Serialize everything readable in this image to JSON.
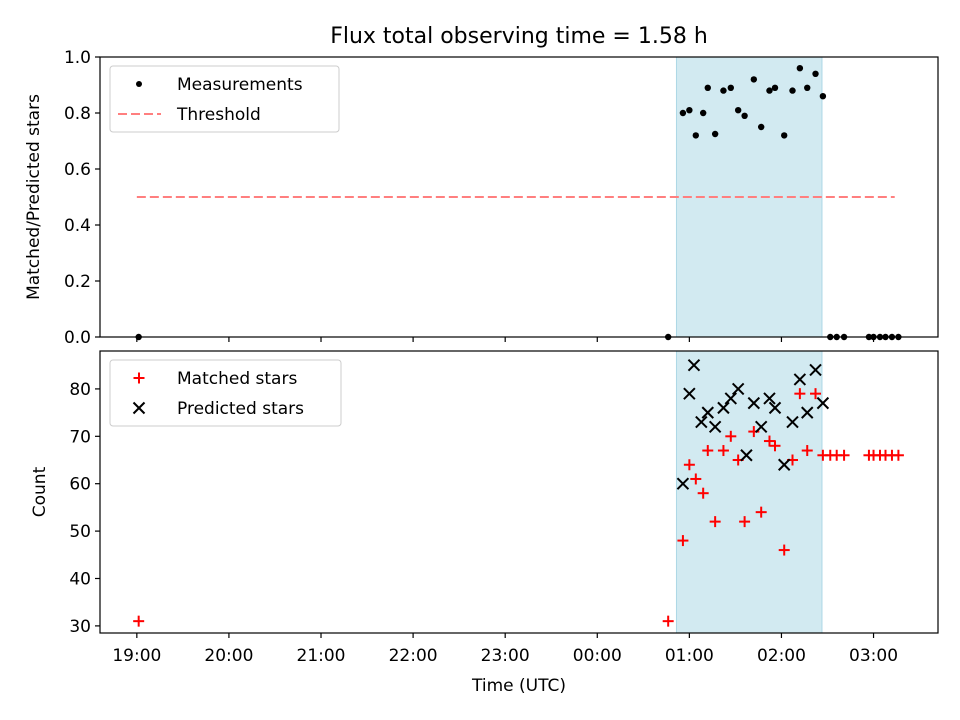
{
  "title": "Flux total observing time = 1.58 h",
  "chart_data": [
    {
      "type": "scatter",
      "ylabel": "Matched/Predicted stars",
      "ylim": [
        0,
        1.0
      ],
      "yticks": [
        "0.0",
        "0.2",
        "0.4",
        "0.6",
        "0.8",
        "1.0"
      ],
      "xlim_hours": [
        18.6,
        27.7
      ],
      "legend": {
        "placement": "top-left",
        "entries": [
          "Measurements",
          "Threshold"
        ]
      },
      "shaded_interval": [
        24.86,
        26.44
      ],
      "colors": {
        "measurements": "#000000",
        "threshold": "#ff7f7f",
        "shade": "#add8e6"
      },
      "threshold": {
        "y": 0.5,
        "x_start": 19.0,
        "x_end": 27.23
      },
      "series": [
        {
          "name": "Measurements",
          "marker": "dot",
          "points": [
            [
              19.02,
              0.0
            ],
            [
              24.77,
              0.0
            ],
            [
              24.93,
              0.8
            ],
            [
              25.0,
              0.81
            ],
            [
              25.07,
              0.72
            ],
            [
              25.15,
              0.8
            ],
            [
              25.2,
              0.89
            ],
            [
              25.28,
              0.725
            ],
            [
              25.37,
              0.88
            ],
            [
              25.45,
              0.89
            ],
            [
              25.53,
              0.81
            ],
            [
              25.6,
              0.79
            ],
            [
              25.7,
              0.92
            ],
            [
              25.78,
              0.75
            ],
            [
              25.87,
              0.88
            ],
            [
              25.93,
              0.89
            ],
            [
              26.03,
              0.72
            ],
            [
              26.12,
              0.88
            ],
            [
              26.2,
              0.96
            ],
            [
              26.28,
              0.89
            ],
            [
              26.37,
              0.94
            ],
            [
              26.45,
              0.86
            ],
            [
              26.53,
              0.0
            ],
            [
              26.6,
              0.0
            ],
            [
              26.68,
              0.0
            ],
            [
              26.95,
              0.0
            ],
            [
              27.0,
              0.0
            ],
            [
              27.07,
              0.0
            ],
            [
              27.13,
              0.0
            ],
            [
              27.2,
              0.0
            ],
            [
              27.27,
              0.0
            ]
          ]
        }
      ]
    },
    {
      "type": "scatter",
      "ylabel": "Count",
      "xlabel": "Time (UTC)",
      "ylim": [
        28.5,
        88
      ],
      "yticks": [
        "30",
        "40",
        "50",
        "60",
        "70",
        "80"
      ],
      "xlim_hours": [
        18.6,
        27.7
      ],
      "xticks": [
        {
          "h": 19,
          "label": "19:00"
        },
        {
          "h": 20,
          "label": "20:00"
        },
        {
          "h": 21,
          "label": "21:00"
        },
        {
          "h": 22,
          "label": "22:00"
        },
        {
          "h": 23,
          "label": "23:00"
        },
        {
          "h": 24,
          "label": "00:00"
        },
        {
          "h": 25,
          "label": "01:00"
        },
        {
          "h": 26,
          "label": "02:00"
        },
        {
          "h": 27,
          "label": "03:00"
        }
      ],
      "legend": {
        "placement": "top-left",
        "entries": [
          "Matched stars",
          "Predicted stars"
        ]
      },
      "shaded_interval": [
        24.86,
        26.44
      ],
      "colors": {
        "matched": "#ff0000",
        "predicted": "#000000",
        "shade": "#add8e6"
      },
      "series": [
        {
          "name": "Matched stars",
          "marker": "plus",
          "points": [
            [
              19.02,
              31
            ],
            [
              24.77,
              31
            ],
            [
              24.93,
              48
            ],
            [
              25.0,
              64
            ],
            [
              25.07,
              61
            ],
            [
              25.15,
              58
            ],
            [
              25.2,
              67
            ],
            [
              25.28,
              52
            ],
            [
              25.37,
              67
            ],
            [
              25.45,
              70
            ],
            [
              25.53,
              65
            ],
            [
              25.6,
              52
            ],
            [
              25.7,
              71
            ],
            [
              25.78,
              54
            ],
            [
              25.87,
              69
            ],
            [
              25.93,
              68
            ],
            [
              26.03,
              46
            ],
            [
              26.12,
              65
            ],
            [
              26.2,
              79
            ],
            [
              26.28,
              67
            ],
            [
              26.37,
              79
            ],
            [
              26.45,
              66
            ],
            [
              26.53,
              66
            ],
            [
              26.6,
              66
            ],
            [
              26.68,
              66
            ],
            [
              26.95,
              66
            ],
            [
              27.0,
              66
            ],
            [
              27.07,
              66
            ],
            [
              27.13,
              66
            ],
            [
              27.2,
              66
            ],
            [
              27.27,
              66
            ]
          ]
        },
        {
          "name": "Predicted stars",
          "marker": "x",
          "points": [
            [
              24.93,
              60
            ],
            [
              25.0,
              79
            ],
            [
              25.05,
              85
            ],
            [
              25.13,
              73
            ],
            [
              25.2,
              75
            ],
            [
              25.28,
              72
            ],
            [
              25.37,
              76
            ],
            [
              25.45,
              78
            ],
            [
              25.53,
              80
            ],
            [
              25.62,
              66
            ],
            [
              25.7,
              77
            ],
            [
              25.78,
              72
            ],
            [
              25.87,
              78
            ],
            [
              25.93,
              76
            ],
            [
              26.03,
              64
            ],
            [
              26.12,
              73
            ],
            [
              26.2,
              82
            ],
            [
              26.28,
              75
            ],
            [
              26.37,
              84
            ],
            [
              26.45,
              77
            ]
          ]
        }
      ]
    }
  ]
}
